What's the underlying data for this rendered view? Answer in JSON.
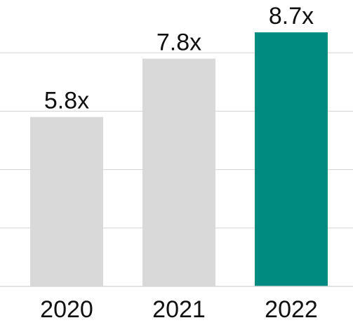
{
  "chart_data": {
    "type": "bar",
    "categories": [
      "2020",
      "2021",
      "2022"
    ],
    "values": [
      5.8,
      7.8,
      8.7
    ],
    "data_labels": [
      "5.8x",
      "7.8x",
      "8.7x"
    ],
    "colors": [
      "#d9d9d9",
      "#d9d9d9",
      "#008b80"
    ],
    "title": "",
    "xlabel": "",
    "ylabel": "",
    "ylim": [
      0,
      10
    ],
    "grid": true,
    "legend": "none"
  }
}
